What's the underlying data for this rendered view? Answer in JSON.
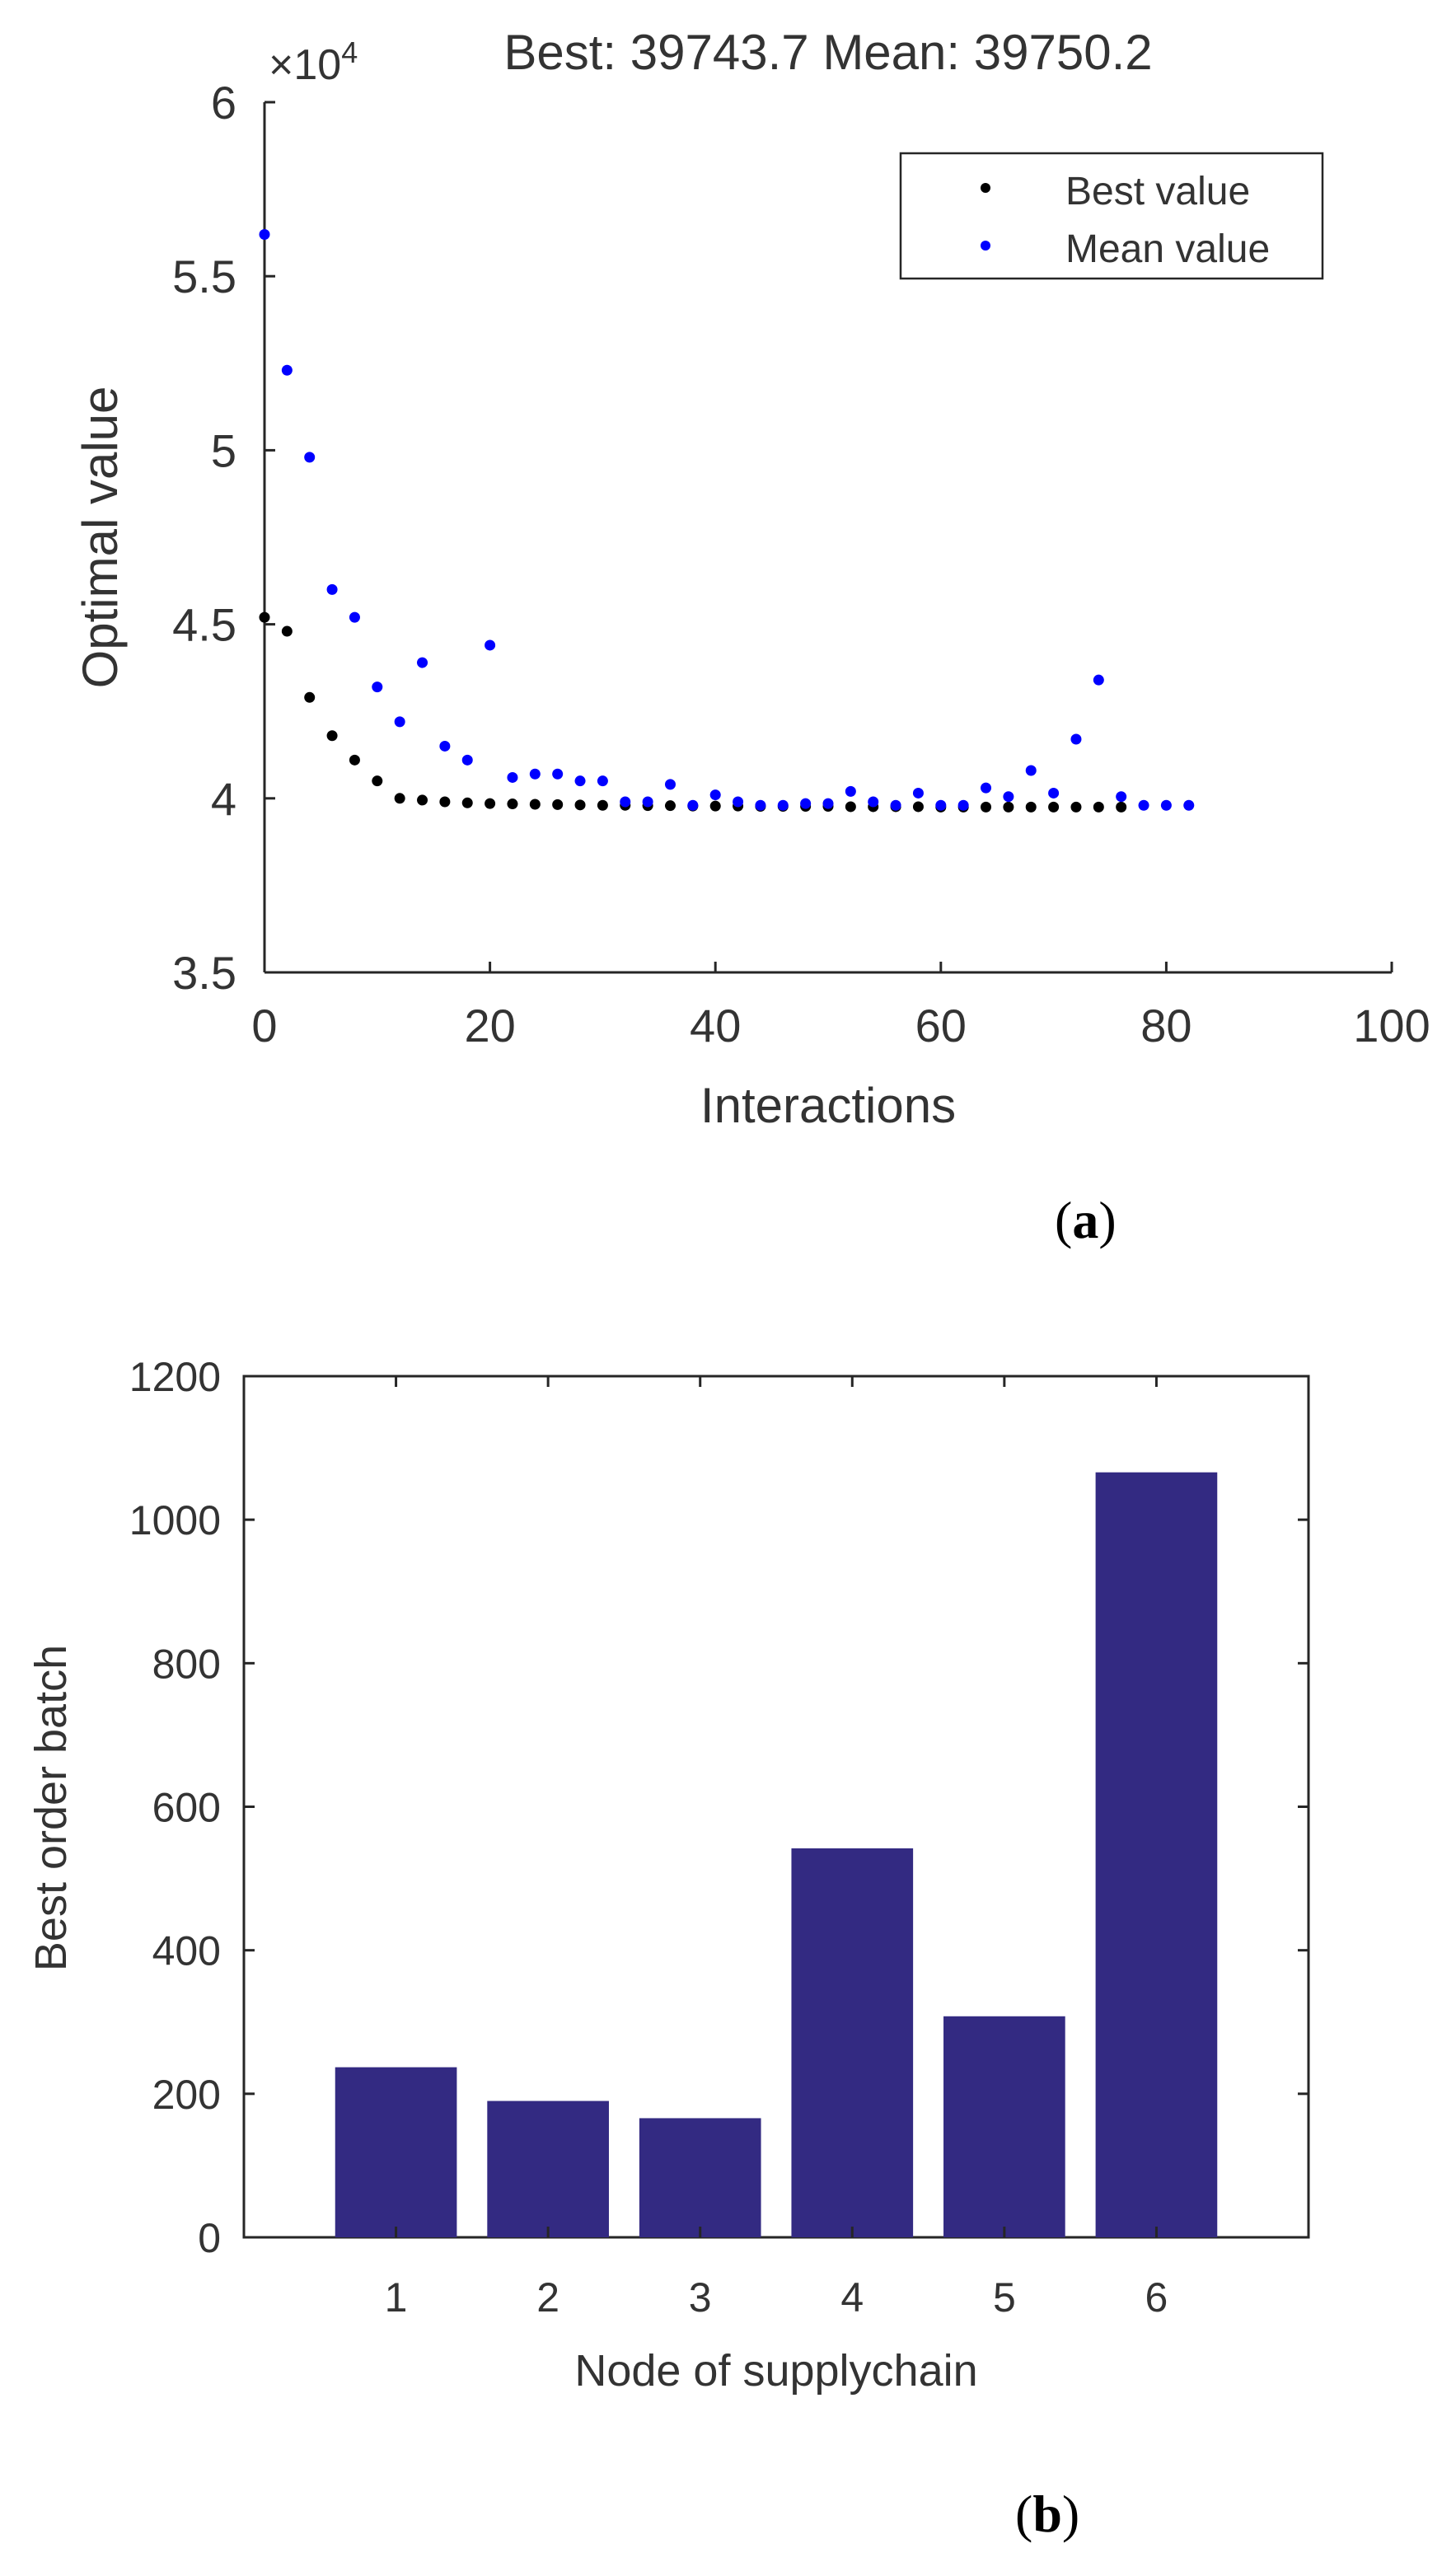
{
  "chart_data": [
    {
      "type": "scatter",
      "panel_label": "a",
      "title": "Best: 39743.7 Mean: 39750.2",
      "exponent_label": "×10",
      "exponent_power": "4",
      "xlabel": "Interactions",
      "ylabel": "Optimal value",
      "xlim": [
        0,
        100
      ],
      "ylim": [
        3.5,
        6
      ],
      "xticks": [
        "0",
        "20",
        "40",
        "60",
        "80",
        "100"
      ],
      "yticks": [
        "3.5",
        "4",
        "4.5",
        "5",
        "5.5",
        "6"
      ],
      "grid": false,
      "legend_position": "top-right",
      "series": [
        {
          "name": "Best value",
          "color": "#000000",
          "x": [
            0,
            2,
            4,
            6,
            8,
            10,
            12,
            14,
            16,
            18,
            20,
            22,
            24,
            26,
            28,
            30,
            32,
            34,
            36,
            38,
            40,
            42,
            44,
            46,
            48,
            50,
            52,
            54,
            56,
            58,
            60,
            62,
            64,
            66,
            68,
            70,
            72,
            74,
            76
          ],
          "y": [
            4.52,
            4.48,
            4.29,
            4.18,
            4.11,
            4.05,
            4.0,
            3.995,
            3.99,
            3.987,
            3.985,
            3.984,
            3.983,
            3.982,
            3.981,
            3.98,
            3.98,
            3.979,
            3.979,
            3.978,
            3.978,
            3.978,
            3.977,
            3.977,
            3.977,
            3.977,
            3.976,
            3.976,
            3.976,
            3.976,
            3.975,
            3.975,
            3.975,
            3.975,
            3.975,
            3.975,
            3.975,
            3.975,
            3.975
          ]
        },
        {
          "name": "Mean value",
          "color": "#0000ff",
          "x": [
            0,
            2,
            4,
            6,
            8,
            10,
            12,
            14,
            16,
            18,
            20,
            22,
            24,
            26,
            28,
            30,
            32,
            34,
            36,
            38,
            40,
            42,
            44,
            46,
            48,
            50,
            52,
            54,
            56,
            58,
            60,
            62,
            64,
            66,
            68,
            70,
            72,
            74,
            76,
            78,
            80,
            82
          ],
          "y": [
            5.62,
            5.23,
            4.98,
            4.6,
            4.52,
            4.32,
            4.22,
            4.39,
            4.15,
            4.11,
            4.44,
            4.06,
            4.07,
            4.07,
            4.05,
            4.05,
            3.99,
            3.99,
            4.04,
            3.98,
            4.01,
            3.99,
            3.98,
            3.98,
            3.985,
            3.985,
            4.02,
            3.99,
            3.98,
            4.015,
            3.98,
            3.98,
            4.03,
            4.005,
            4.08,
            4.015,
            4.17,
            4.34,
            4.005,
            3.98,
            3.98,
            3.98
          ]
        }
      ]
    },
    {
      "type": "bar",
      "panel_label": "b",
      "title": "",
      "xlabel": "Node of supplychain",
      "ylabel": "Best order batch",
      "categories": [
        "1",
        "2",
        "3",
        "4",
        "5",
        "6"
      ],
      "values": [
        237,
        190,
        166,
        542,
        308,
        1066
      ],
      "ylim": [
        0,
        1200
      ],
      "yticks": [
        "0",
        "200",
        "400",
        "600",
        "800",
        "1000",
        "1200"
      ],
      "bar_color": "#332a82",
      "grid": false
    }
  ]
}
